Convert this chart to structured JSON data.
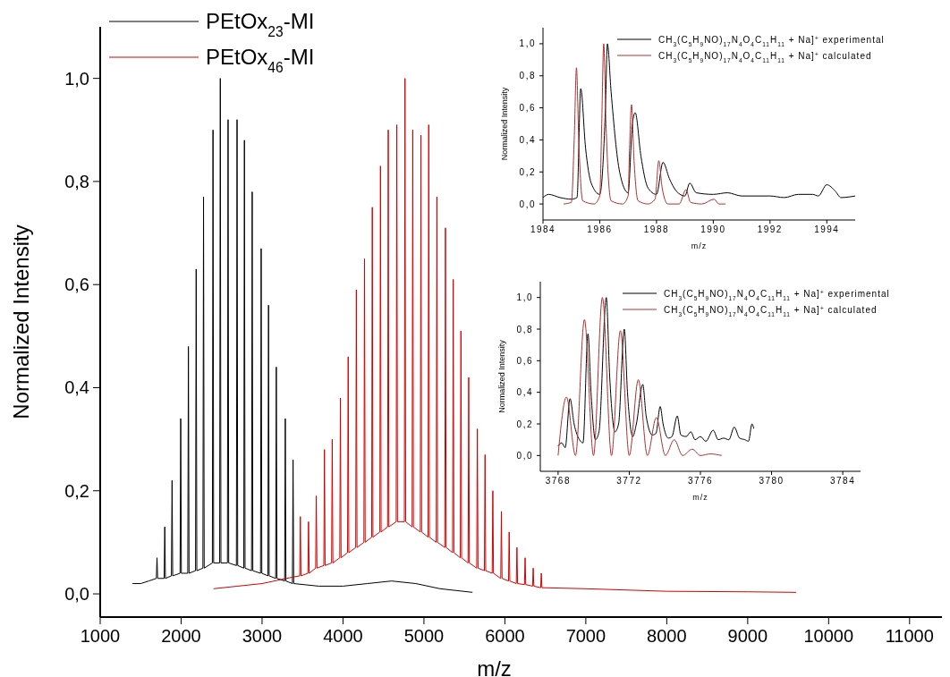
{
  "chart_data": [
    {
      "type": "line",
      "xlabel": "m/z",
      "ylabel": "Normalized Intensity",
      "xlim": [
        1000,
        11400
      ],
      "ylim": [
        -0.045,
        1.1
      ],
      "xticks": [
        1000,
        2000,
        3000,
        4000,
        5000,
        6000,
        7000,
        8000,
        9000,
        10000,
        11000
      ],
      "yticks": [
        {
          "value": 0,
          "label": "0,0"
        },
        {
          "value": 0.2,
          "label": "0,2"
        },
        {
          "value": 0.4,
          "label": "0,4"
        },
        {
          "value": 0.6,
          "label": "0,6"
        },
        {
          "value": 0.8,
          "label": "0,8"
        },
        {
          "value": 1.0,
          "label": "1,0"
        }
      ],
      "legend": "top left",
      "series": [
        {
          "name": "PEtOx$_{23}$-MI",
          "color": "#000000",
          "x": [
            1400,
            1500,
            1600,
            1694,
            1702,
            1710,
            1790,
            1798,
            1806,
            1880,
            1888,
            1896,
            1987,
            1995,
            2003,
            2082,
            2090,
            2098,
            2178,
            2186,
            2194,
            2269,
            2277,
            2285,
            2386,
            2394,
            2402,
            2476,
            2484,
            2492,
            2572,
            2580,
            2588,
            2683,
            2691,
            2699,
            2774,
            2782,
            2790,
            2870,
            2878,
            2886,
            2981,
            2989,
            2997,
            3072,
            3080,
            3088,
            3168,
            3176,
            3184,
            3279,
            3287,
            3295,
            3375,
            3383,
            3391,
            3700,
            4000,
            4300,
            4600,
            4900,
            5200,
            5600
          ],
          "values": [
            0.02,
            0.02,
            0.025,
            0.03,
            0.07,
            0.03,
            0.03,
            0.13,
            0.03,
            0.035,
            0.22,
            0.035,
            0.04,
            0.34,
            0.04,
            0.04,
            0.48,
            0.04,
            0.045,
            0.63,
            0.045,
            0.05,
            0.77,
            0.05,
            0.06,
            0.9,
            0.06,
            0.06,
            1.0,
            0.06,
            0.06,
            0.92,
            0.06,
            0.055,
            0.92,
            0.055,
            0.05,
            0.88,
            0.05,
            0.045,
            0.78,
            0.045,
            0.04,
            0.67,
            0.04,
            0.035,
            0.56,
            0.035,
            0.03,
            0.44,
            0.03,
            0.025,
            0.34,
            0.025,
            0.02,
            0.26,
            0.02,
            0.015,
            0.015,
            0.02,
            0.025,
            0.02,
            0.01,
            0.003
          ]
        },
        {
          "name": "PEtOx$_{46}$-MI",
          "color": "#d40000",
          "x": [
            2400,
            2700,
            3000,
            3300,
            3465,
            3473,
            3481,
            3566,
            3574,
            3582,
            3662,
            3670,
            3678,
            3763,
            3771,
            3779,
            3859,
            3867,
            3875,
            3960,
            3968,
            3976,
            4056,
            4064,
            4072,
            4157,
            4165,
            4173,
            4258,
            4266,
            4274,
            4354,
            4362,
            4370,
            4455,
            4463,
            4471,
            4551,
            4559,
            4567,
            4657,
            4665,
            4673,
            4758,
            4766,
            4774,
            4854,
            4862,
            4870,
            4955,
            4963,
            4971,
            5051,
            5059,
            5067,
            5152,
            5160,
            5168,
            5258,
            5266,
            5274,
            5354,
            5362,
            5370,
            5449,
            5457,
            5465,
            5545,
            5553,
            5561,
            5652,
            5660,
            5668,
            5747,
            5755,
            5763,
            5843,
            5851,
            5859,
            5949,
            5957,
            5965,
            6045,
            6053,
            6061,
            6141,
            6149,
            6157,
            6242,
            6250,
            6258,
            6342,
            6350,
            6358,
            6442,
            6450,
            6458,
            7000,
            8000,
            9000,
            9600
          ],
          "values": [
            0.01,
            0.015,
            0.02,
            0.03,
            0.035,
            0.15,
            0.035,
            0.04,
            0.14,
            0.04,
            0.05,
            0.19,
            0.05,
            0.055,
            0.28,
            0.055,
            0.06,
            0.3,
            0.06,
            0.07,
            0.38,
            0.07,
            0.08,
            0.46,
            0.08,
            0.09,
            0.59,
            0.09,
            0.1,
            0.65,
            0.1,
            0.11,
            0.75,
            0.11,
            0.12,
            0.83,
            0.12,
            0.13,
            0.9,
            0.13,
            0.14,
            0.91,
            0.14,
            0.14,
            1.0,
            0.14,
            0.13,
            0.9,
            0.13,
            0.12,
            0.89,
            0.12,
            0.11,
            0.91,
            0.11,
            0.1,
            0.77,
            0.1,
            0.09,
            0.71,
            0.09,
            0.08,
            0.61,
            0.08,
            0.07,
            0.51,
            0.07,
            0.06,
            0.42,
            0.06,
            0.05,
            0.32,
            0.05,
            0.045,
            0.27,
            0.045,
            0.04,
            0.2,
            0.04,
            0.03,
            0.16,
            0.03,
            0.025,
            0.12,
            0.025,
            0.02,
            0.09,
            0.02,
            0.018,
            0.07,
            0.018,
            0.015,
            0.05,
            0.015,
            0.012,
            0.04,
            0.012,
            0.01,
            0.005,
            0.004,
            0.003
          ]
        }
      ]
    },
    {
      "type": "line",
      "xlabel": "m/z",
      "ylabel": "Normalized Intensity",
      "xlim": [
        1984,
        1995
      ],
      "ylim": [
        -0.1,
        1.1
      ],
      "xticks": [
        1984,
        1986,
        1988,
        1990,
        1992,
        1994
      ],
      "yticks": [
        {
          "value": 0,
          "label": "0,0"
        },
        {
          "value": 0.2,
          "label": "0,2"
        },
        {
          "value": 0.4,
          "label": "0,4"
        },
        {
          "value": 0.6,
          "label": "0,6"
        },
        {
          "value": 0.8,
          "label": "0,8"
        },
        {
          "value": 1.0,
          "label": "1,0"
        }
      ],
      "legend": "top right",
      "series": [
        {
          "name": "CH$_{3}$(C$_{5}$H$_{9}$NO)$_{17}$N$_{4}$O$_{4}$C$_{11}$H$_{11}$ + Na]$^{+}$ experimental",
          "color": "#000000",
          "x": [
            1984.0,
            1984.2,
            1984.6,
            1985.0,
            1985.2,
            1985.33,
            1985.5,
            1985.7,
            1986.0,
            1986.2,
            1986.27,
            1986.4,
            1986.7,
            1987.0,
            1987.15,
            1987.25,
            1987.45,
            1987.7,
            1988.0,
            1988.23,
            1988.45,
            1988.7,
            1989.0,
            1989.17,
            1989.4,
            1990.0,
            1990.5,
            1991.0,
            1992.0,
            1992.5,
            1993.0,
            1993.5,
            1993.7,
            1994.0,
            1994.3,
            1994.5,
            1995.0
          ],
          "values": [
            0.04,
            0.06,
            0.04,
            0.03,
            0.04,
            0.72,
            0.35,
            0.13,
            0.06,
            0.6,
            1.0,
            0.7,
            0.2,
            0.07,
            0.5,
            0.57,
            0.3,
            0.1,
            0.06,
            0.26,
            0.16,
            0.08,
            0.05,
            0.13,
            0.07,
            0.06,
            0.07,
            0.05,
            0.05,
            0.04,
            0.06,
            0.06,
            0.05,
            0.12,
            0.08,
            0.04,
            0.05
          ]
        },
        {
          "name": "CH$_{3}$(C$_{5}$H$_{9}$NO)$_{17}$N$_{4}$O$_{4}$C$_{11}$H$_{11}$ + Na]$^{+}$ calculated",
          "color": "#b03030",
          "x": [
            1984.73,
            1985.0,
            1985.1,
            1985.18,
            1985.26,
            1985.4,
            1985.8,
            1986.0,
            1986.07,
            1986.14,
            1986.22,
            1986.4,
            1986.8,
            1987.0,
            1987.05,
            1987.12,
            1987.2,
            1987.35,
            1987.7,
            1987.95,
            1988.08,
            1988.2,
            1988.4,
            1988.8,
            1989.04,
            1989.2,
            1989.6,
            1990.03,
            1990.2,
            1990.43
          ],
          "values": [
            0,
            0.01,
            0.4,
            0.85,
            0.4,
            0.02,
            0,
            0.05,
            0.5,
            1.0,
            0.5,
            0.02,
            0,
            0.05,
            0.35,
            0.62,
            0.3,
            0.02,
            0,
            0.03,
            0.27,
            0.1,
            0,
            0,
            0.09,
            0.01,
            0,
            0.03,
            0,
            0
          ]
        }
      ]
    },
    {
      "type": "line",
      "xlabel": "m/z",
      "ylabel": "Normalized Intensity",
      "xlim": [
        3767,
        3785
      ],
      "ylim": [
        -0.1,
        1.1
      ],
      "xticks": [
        3768,
        3772,
        3776,
        3780,
        3784
      ],
      "yticks": [
        {
          "value": 0,
          "label": "0,0"
        },
        {
          "value": 0.2,
          "label": "0,2"
        },
        {
          "value": 0.4,
          "label": "0,4"
        },
        {
          "value": 0.6,
          "label": "0,6"
        },
        {
          "value": 0.8,
          "label": "0,8"
        },
        {
          "value": 1.0,
          "label": "1,0"
        }
      ],
      "legend": "top right",
      "series": [
        {
          "name": "CH$_{3}$(C$_{5}$H$_{9}$NO)$_{17}$N$_{4}$O$_{4}$C$_{11}$H$_{11}$ + Na]$^{+}$ experimental",
          "color": "#000000",
          "x": [
            3768.0,
            3768.2,
            3768.4,
            3768.67,
            3768.9,
            3769.2,
            3769.4,
            3769.68,
            3769.85,
            3770.1,
            3770.3,
            3770.71,
            3770.9,
            3771.2,
            3771.4,
            3771.72,
            3771.9,
            3772.2,
            3772.4,
            3772.76,
            3772.95,
            3773.3,
            3773.5,
            3773.74,
            3773.9,
            3774.2,
            3774.4,
            3774.7,
            3774.9,
            3775.2,
            3775.46,
            3775.7,
            3776.0,
            3776.3,
            3776.72,
            3777.0,
            3777.3,
            3777.6,
            3777.9,
            3778.2,
            3778.5,
            3778.7,
            3778.9,
            3779.0
          ],
          "values": [
            0.06,
            0.08,
            0.05,
            0.36,
            0.2,
            0.1,
            0.08,
            0.77,
            0.4,
            0.1,
            0.15,
            1.0,
            0.5,
            0.15,
            0.2,
            0.8,
            0.4,
            0.12,
            0.2,
            0.45,
            0.25,
            0.13,
            0.14,
            0.31,
            0.2,
            0.11,
            0.12,
            0.25,
            0.13,
            0.12,
            0.15,
            0.1,
            0.12,
            0.09,
            0.16,
            0.1,
            0.11,
            0.1,
            0.18,
            0.11,
            0.1,
            0.09,
            0.2,
            0.17
          ]
        },
        {
          "name": "CH$_{3}$(C$_{5}$H$_{9}$NO)$_{17}$N$_{4}$O$_{4}$C$_{11}$H$_{11}$ + Na]$^{+}$ calculated",
          "color": "#b03030",
          "x": [
            3768.0,
            3768.47,
            3768.98,
            3769.48,
            3769.99,
            3770.49,
            3771.0,
            3771.5,
            3772.0,
            3772.51,
            3773.02,
            3773.52,
            3774.03,
            3774.53,
            3775.0,
            3775.54,
            3776.0,
            3776.55,
            3777.2
          ],
          "values": [
            0,
            0.37,
            0,
            0.86,
            0,
            1.0,
            0,
            0.79,
            0,
            0.48,
            0,
            0.24,
            0,
            0.1,
            0,
            0.04,
            0,
            0.01,
            0
          ]
        }
      ]
    }
  ]
}
